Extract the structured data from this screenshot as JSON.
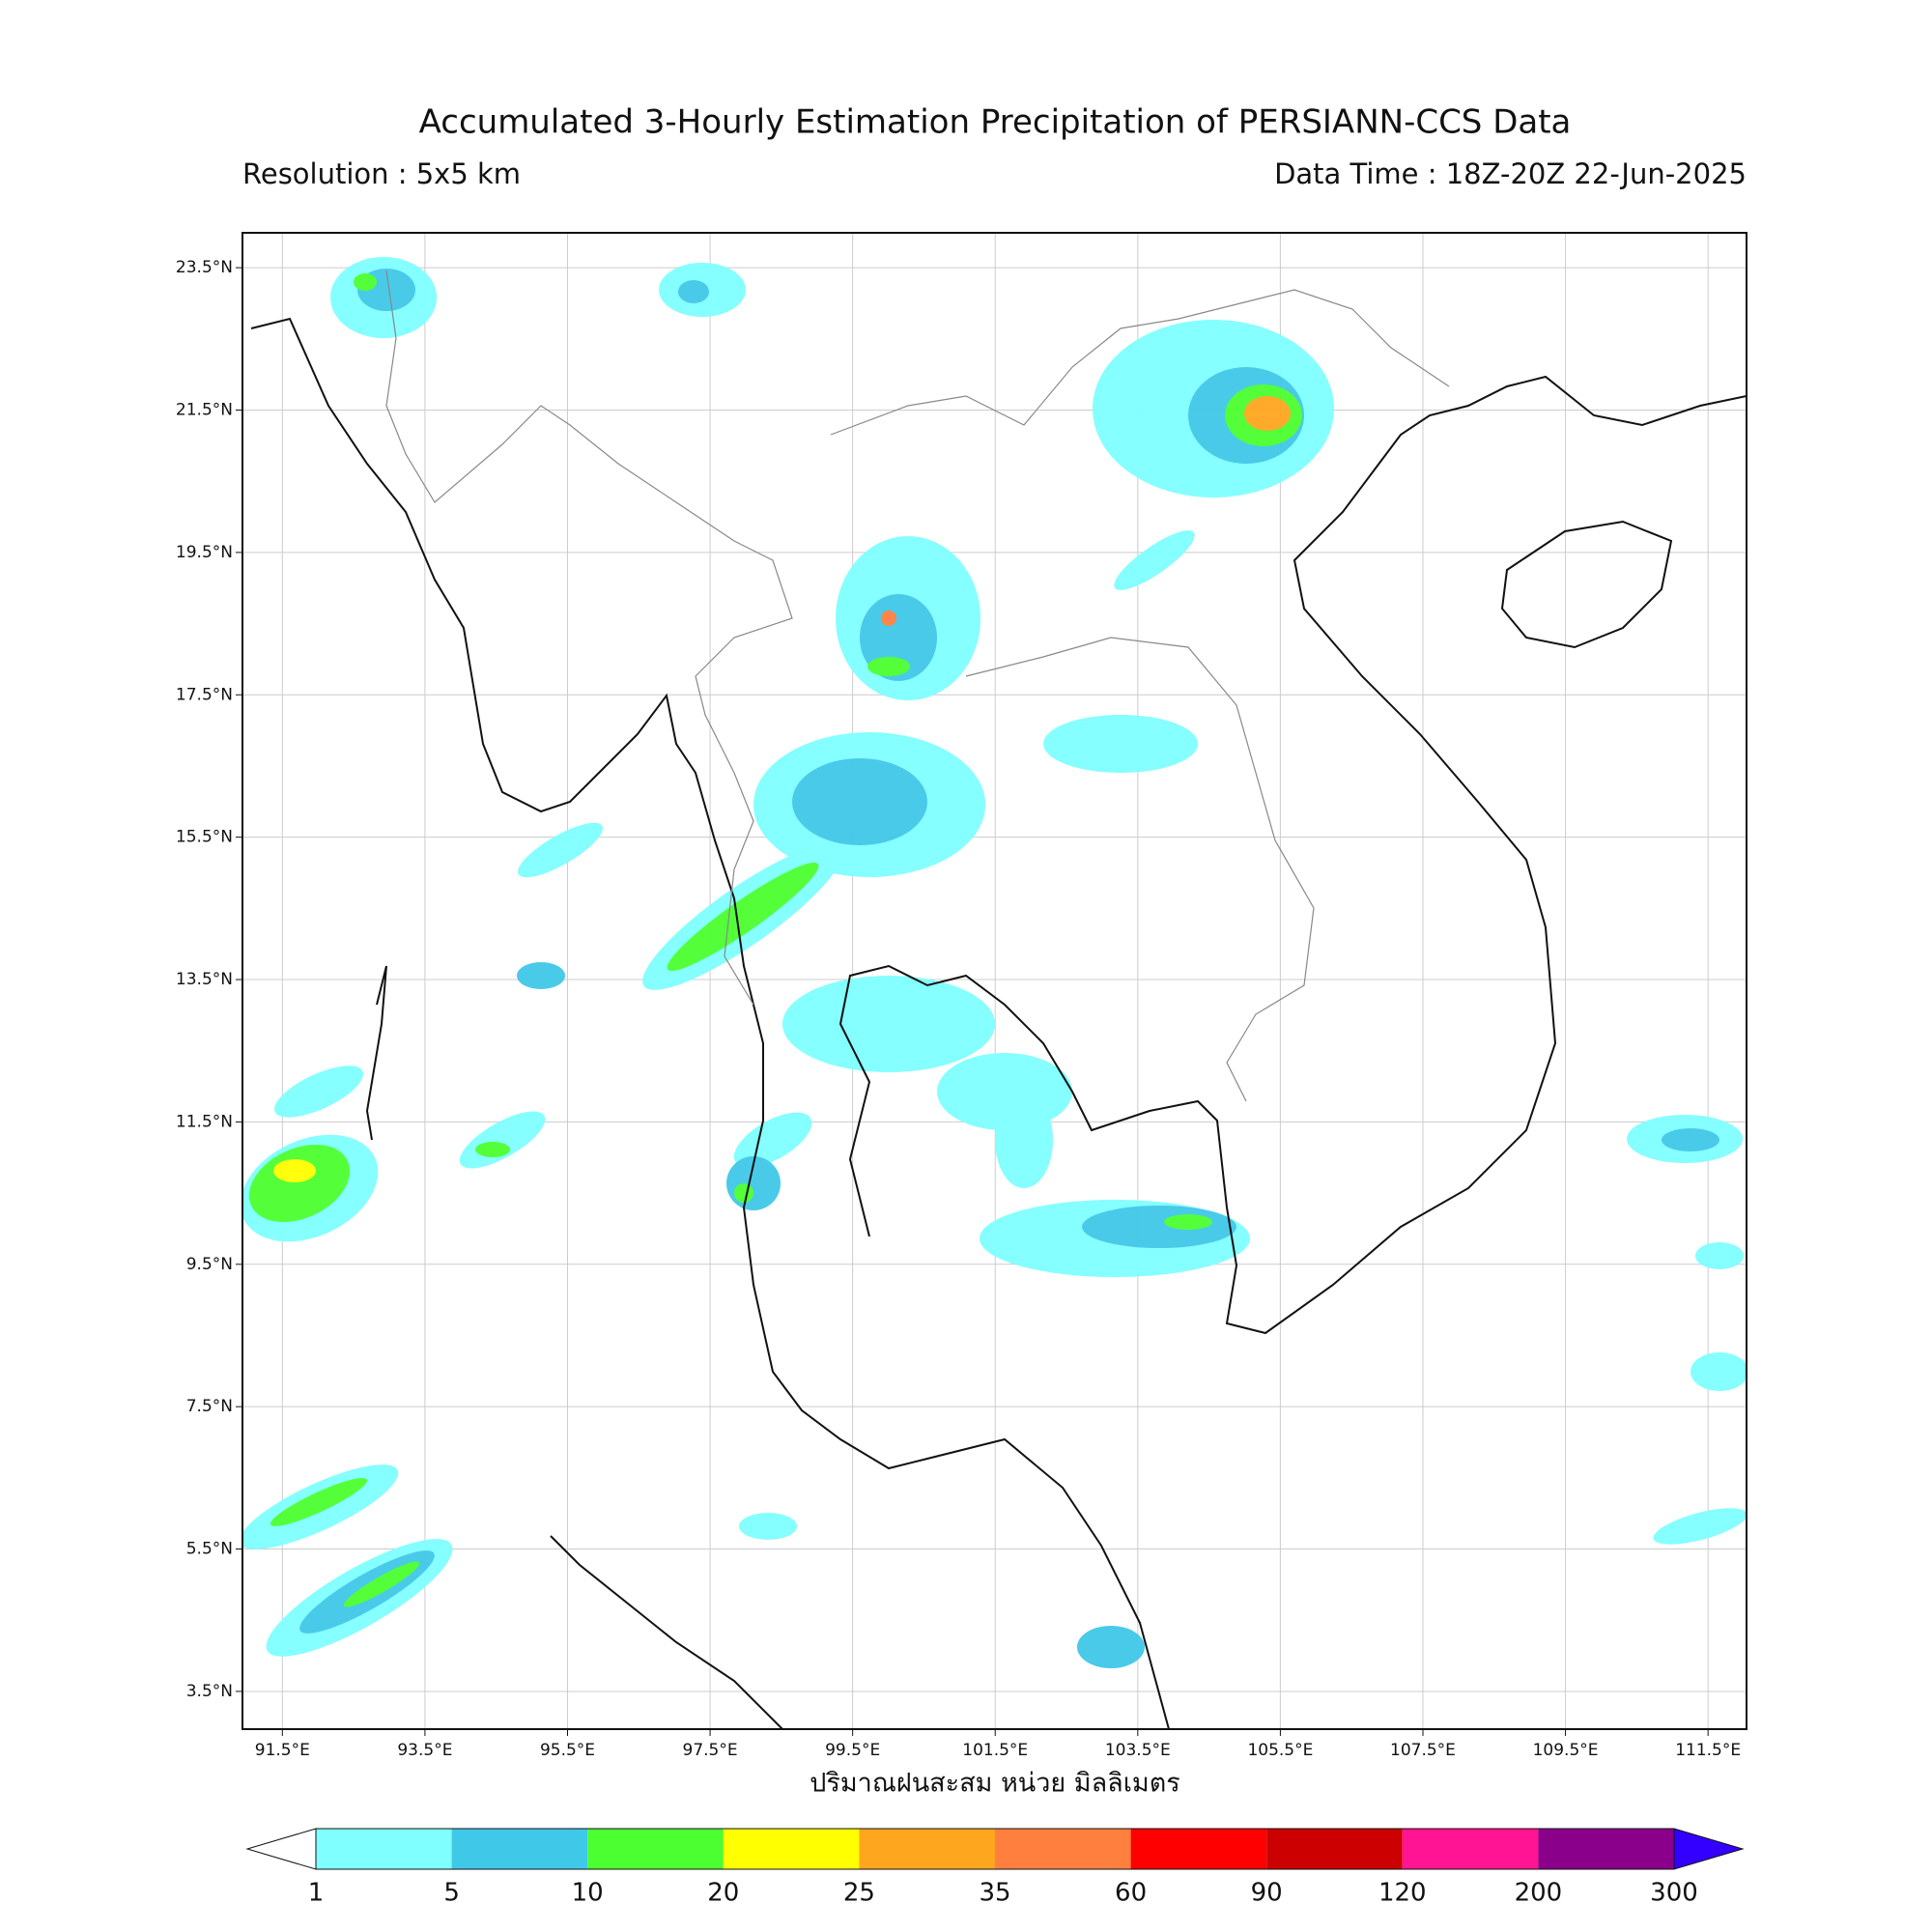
{
  "header": {
    "title": "Accumulated 3-Hourly Estimation Precipitation of PERSIANN-CCS Data",
    "resolution": "Resolution : 5x5 km",
    "data_time": "Data Time : 18Z-20Z 22-Jun-2025"
  },
  "map": {
    "lon_lim": [
      90.94,
      112.04
    ],
    "lat_lim": [
      2.97,
      23.99
    ],
    "grid": true,
    "lat_ticks": [
      {
        "value": 23.5,
        "label": "23.5°N"
      },
      {
        "value": 21.5,
        "label": "21.5°N"
      },
      {
        "value": 19.5,
        "label": "19.5°N"
      },
      {
        "value": 17.5,
        "label": "17.5°N"
      },
      {
        "value": 15.5,
        "label": "15.5°N"
      },
      {
        "value": 13.5,
        "label": "13.5°N"
      },
      {
        "value": 11.5,
        "label": "11.5°N"
      },
      {
        "value": 9.5,
        "label": "9.5°N"
      },
      {
        "value": 7.5,
        "label": "7.5°N"
      },
      {
        "value": 5.5,
        "label": "5.5°N"
      },
      {
        "value": 3.5,
        "label": "3.5°N"
      }
    ],
    "lon_ticks": [
      {
        "value": 91.5,
        "label": "91.5°E"
      },
      {
        "value": 93.5,
        "label": "93.5°E"
      },
      {
        "value": 95.5,
        "label": "95.5°E"
      },
      {
        "value": 97.5,
        "label": "97.5°E"
      },
      {
        "value": 99.5,
        "label": "99.5°E"
      },
      {
        "value": 101.5,
        "label": "101.5°E"
      },
      {
        "value": 103.5,
        "label": "103.5°E"
      },
      {
        "value": 105.5,
        "label": "105.5°E"
      },
      {
        "value": 107.5,
        "label": "107.5°E"
      },
      {
        "value": 109.5,
        "label": "109.5°E"
      },
      {
        "value": 111.5,
        "label": "111.5°E"
      }
    ],
    "x_label": "ปริมาณฝนสะสม หน่วย มิลลิเมตร"
  },
  "colorbar": {
    "bounds": [
      1,
      5,
      10,
      20,
      25,
      35,
      60,
      90,
      120,
      200,
      300
    ],
    "colors": [
      "#7fffff",
      "#40c8e8",
      "#4bff30",
      "#ffff00",
      "#ffa61f",
      "#ff7f3f",
      "#ff0000",
      "#cc0000",
      "#ff1493",
      "#8b008b"
    ],
    "under_color": "#ffffff",
    "over_color": "#3300ff"
  }
}
